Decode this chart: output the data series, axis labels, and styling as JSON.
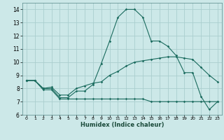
{
  "bg_color": "#cce8e8",
  "grid_color": "#aacece",
  "line_color": "#1a6b5e",
  "xlabel": "Humidex (Indice chaleur)",
  "xlim": [
    -0.5,
    23.5
  ],
  "ylim": [
    6,
    14.5
  ],
  "yticks": [
    6,
    7,
    8,
    9,
    10,
    11,
    12,
    13,
    14
  ],
  "xticks": [
    0,
    1,
    2,
    3,
    4,
    5,
    6,
    7,
    8,
    9,
    10,
    11,
    12,
    13,
    14,
    15,
    16,
    17,
    18,
    19,
    20,
    21,
    22,
    23
  ],
  "series": [
    {
      "x": [
        0,
        1,
        2,
        3,
        4,
        5,
        6,
        7,
        8,
        9,
        10,
        11,
        12,
        13,
        14,
        15,
        16,
        17,
        18,
        19,
        20,
        21,
        22,
        23
      ],
      "y": [
        8.6,
        8.6,
        8.0,
        8.0,
        7.3,
        7.3,
        7.8,
        7.8,
        8.3,
        9.9,
        11.6,
        13.4,
        14.0,
        14.0,
        13.4,
        11.6,
        11.6,
        11.2,
        10.5,
        9.2,
        9.2,
        7.4,
        6.4,
        7.0
      ]
    },
    {
      "x": [
        0,
        1,
        2,
        3,
        4,
        5,
        6,
        7,
        8,
        9,
        10,
        11,
        12,
        13,
        14,
        15,
        16,
        17,
        18,
        19,
        20,
        21,
        22,
        23
      ],
      "y": [
        8.6,
        8.6,
        8.0,
        8.1,
        7.5,
        7.5,
        8.0,
        8.2,
        8.4,
        8.5,
        9.0,
        9.3,
        9.7,
        10.0,
        10.1,
        10.2,
        10.3,
        10.4,
        10.4,
        10.3,
        10.2,
        9.6,
        9.0,
        8.5
      ]
    },
    {
      "x": [
        0,
        1,
        2,
        3,
        4,
        5,
        6,
        7,
        8,
        9,
        10,
        11,
        12,
        13,
        14,
        15,
        16,
        17,
        18,
        19,
        20,
        21,
        22,
        23
      ],
      "y": [
        8.6,
        8.6,
        7.9,
        7.9,
        7.2,
        7.2,
        7.2,
        7.2,
        7.2,
        7.2,
        7.2,
        7.2,
        7.2,
        7.2,
        7.2,
        7.0,
        7.0,
        7.0,
        7.0,
        7.0,
        7.0,
        7.0,
        7.0,
        7.0
      ]
    }
  ]
}
